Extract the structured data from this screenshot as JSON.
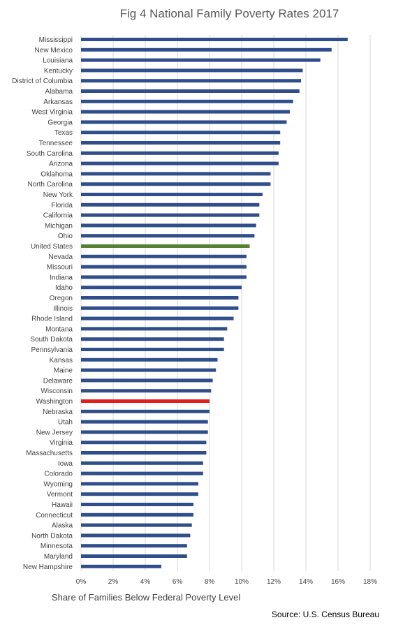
{
  "chart_data": {
    "type": "bar",
    "orientation": "horizontal",
    "title": "Fig 4 National Family Poverty Rates 2017",
    "xlabel": "Share of Families Below Federal Poverty Level",
    "ylabel": "",
    "source": "Source: U.S. Census Bureau",
    "xlim": [
      0,
      18
    ],
    "x_ticks": [
      "0%",
      "2%",
      "4%",
      "6%",
      "8%",
      "10%",
      "12%",
      "14%",
      "16%",
      "18%"
    ],
    "grid": "vertical",
    "categories": [
      "Mississippi",
      "New Mexico",
      "Louisiana",
      "Kentucky",
      "District of Columbia",
      "Alabama",
      "Arkansas",
      "West Virginia",
      "Georgia",
      "Texas",
      "Tennessee",
      "South Carolina",
      "Arizona",
      "Oklahoma",
      "North Carolina",
      "New York",
      "Florida",
      "California",
      "Michigan",
      "Ohio",
      "United States",
      "Nevada",
      "Missouri",
      "Indiana",
      "Idaho",
      "Oregon",
      "Illinois",
      "Rhode Island",
      "Montana",
      "South Dakota",
      "Pennsylvania",
      "Kansas",
      "Maine",
      "Delaware",
      "Wisconsin",
      "Washington",
      "Nebraska",
      "Utah",
      "New Jersey",
      "Virginia",
      "Massachusetts",
      "Iowa",
      "Colorado",
      "Wyoming",
      "Vermont",
      "Hawaii",
      "Connecticut",
      "Alaska",
      "North Dakota",
      "Minnesota",
      "Maryland",
      "New Hampshire"
    ],
    "values": [
      16.6,
      15.6,
      14.9,
      13.8,
      13.7,
      13.6,
      13.2,
      13.0,
      12.8,
      12.4,
      12.4,
      12.3,
      12.3,
      11.8,
      11.8,
      11.3,
      11.1,
      11.1,
      10.9,
      10.8,
      10.5,
      10.3,
      10.3,
      10.3,
      10.0,
      9.8,
      9.8,
      9.5,
      9.1,
      8.9,
      8.9,
      8.5,
      8.4,
      8.2,
      8.1,
      8.0,
      8.0,
      7.9,
      7.9,
      7.8,
      7.8,
      7.6,
      7.6,
      7.3,
      7.3,
      7.0,
      7.0,
      6.9,
      6.8,
      6.6,
      6.6,
      5.0
    ],
    "colors": {
      "default": "#2F4E8A",
      "United States": "#548235",
      "Washington": "#E0201B",
      "grid": "#D9D9D9"
    }
  }
}
